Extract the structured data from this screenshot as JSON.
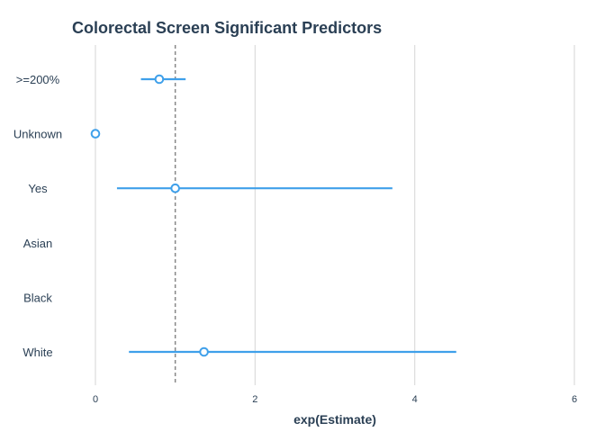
{
  "chart_data": {
    "type": "forest",
    "title": "Colorectal Screen Significant Predictors",
    "xlabel": "exp(Estimate)",
    "ylabel": "",
    "xlim": [
      0,
      6
    ],
    "xticks": [
      0,
      2,
      4,
      6
    ],
    "xtick_labels": [
      "0",
      "2",
      "4",
      "6"
    ],
    "reference_line": 1,
    "grid": true,
    "categories": [
      ">=200%",
      "Unknown",
      "Yes",
      "Asian",
      "Black",
      "White"
    ],
    "points": [
      {
        "label": ">=200%",
        "estimate": 0.8,
        "lower": 0.57,
        "upper": 1.13
      },
      {
        "label": "Unknown",
        "estimate": 0.0,
        "lower": null,
        "upper": null
      },
      {
        "label": "Yes",
        "estimate": 1.0,
        "lower": 0.27,
        "upper": 3.72
      },
      {
        "label": "Asian",
        "estimate": null,
        "lower": null,
        "upper": null
      },
      {
        "label": "Black",
        "estimate": null,
        "lower": null,
        "upper": null
      },
      {
        "label": "White",
        "estimate": 1.36,
        "lower": 0.42,
        "upper": 4.52
      }
    ],
    "colors": {
      "marker": "#3fa0ea",
      "grid": "#dcdcdc",
      "reference": "#888888",
      "text": "#2a3f54"
    }
  }
}
